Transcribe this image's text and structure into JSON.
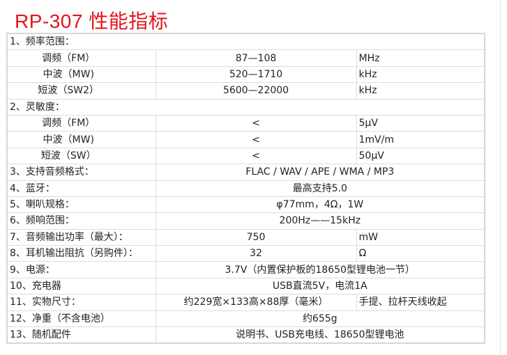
{
  "title": "RP-307 性能指标",
  "rows": [
    {
      "type": "section",
      "label": "1、频率范围："
    },
    {
      "type": "sub",
      "label": "调频（FM）",
      "value": "87—108",
      "unit": "MHz"
    },
    {
      "type": "sub",
      "label": "中波（MW)",
      "value": "520—1710",
      "unit": "kHz"
    },
    {
      "type": "sub",
      "label": "短波（SW2）",
      "value": "5600—22000",
      "unit": "kHz"
    },
    {
      "type": "section",
      "label": "2、灵敏度："
    },
    {
      "type": "sub",
      "label": "调频（FM）",
      "value": "<",
      "unit": "5μV"
    },
    {
      "type": "sub",
      "label": "中波（MW)",
      "value": "<",
      "unit": "1mV/m"
    },
    {
      "type": "sub",
      "label": "短波（SW）",
      "value": "<",
      "unit": "50μV"
    },
    {
      "type": "full",
      "label": "3、支持音频格式：",
      "value": "FLAC / WAV / APE / WMA / MP3"
    },
    {
      "type": "full",
      "label": "4、蓝牙：",
      "value": "最高支持5.0"
    },
    {
      "type": "full",
      "label": "5、喇叭规格：",
      "value": "φ77mm，4Ω，1W"
    },
    {
      "type": "full",
      "label": "6、频响范围：",
      "value": "200Hz——15kHz"
    },
    {
      "type": "item",
      "label": "7、音频输出功率（最大）：",
      "value": "750",
      "unit": "mW"
    },
    {
      "type": "item",
      "label": "8、耳机输出阻抗（另购件）：",
      "value": "32",
      "unit": "Ω"
    },
    {
      "type": "full",
      "label": "9、电源：",
      "value": "3.7V（内置保护板的18650型锂电池一节）"
    },
    {
      "type": "full",
      "label": "10、充电器",
      "value": "USB直流5V，电流1A"
    },
    {
      "type": "item",
      "label": "11、实物尺寸：",
      "value": "约229宽×133高×88厚（毫米）",
      "unit": "手提、拉杆天线收起"
    },
    {
      "type": "full",
      "label": "12、净重（不含电池）",
      "value": "约655g"
    },
    {
      "type": "full",
      "label": "13、随机配件",
      "value": "说明书、USB充电线、18650型锂电池"
    }
  ]
}
